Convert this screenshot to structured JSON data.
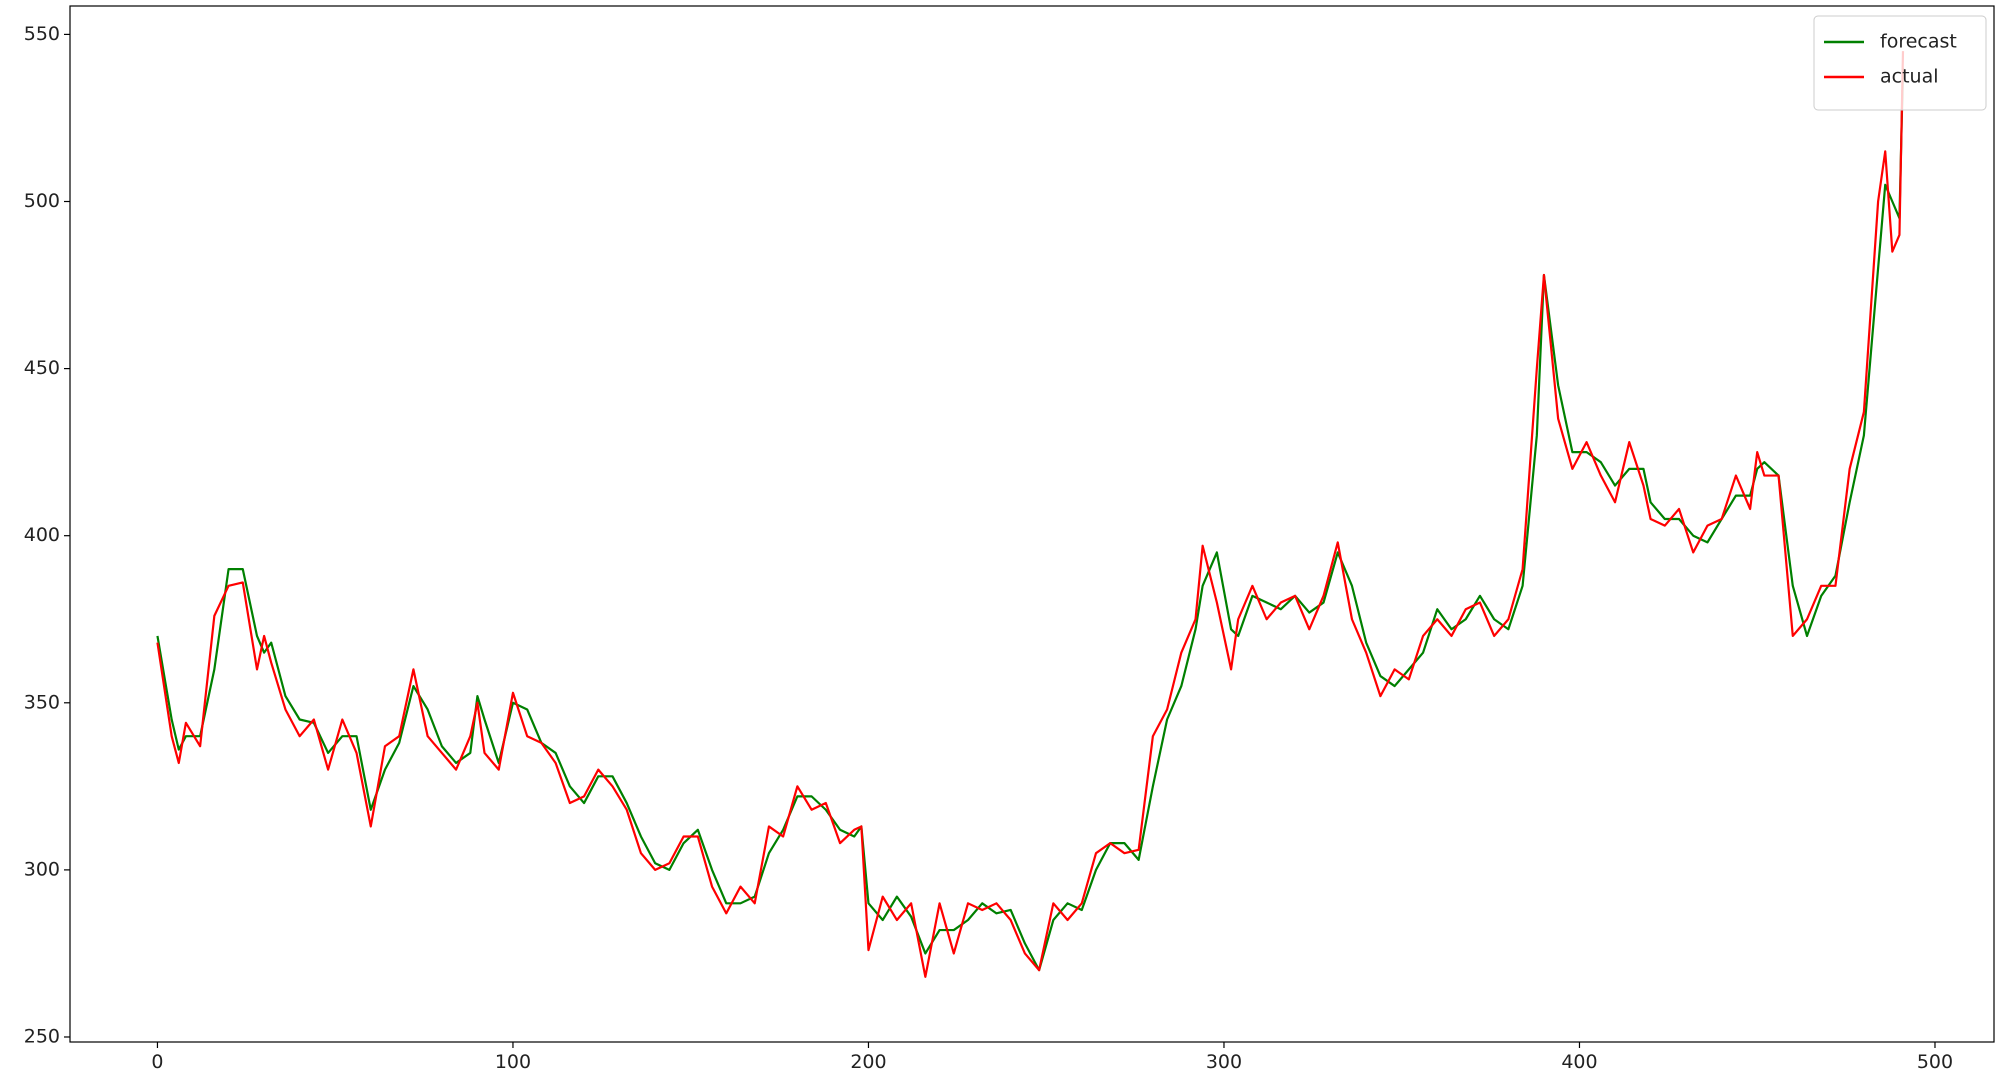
{
  "chart_data": {
    "type": "line",
    "x": [
      0,
      4,
      6,
      8,
      12,
      16,
      20,
      24,
      28,
      30,
      32,
      36,
      40,
      44,
      48,
      52,
      56,
      60,
      64,
      68,
      72,
      76,
      80,
      84,
      88,
      90,
      92,
      96,
      100,
      104,
      108,
      112,
      116,
      120,
      124,
      128,
      132,
      136,
      140,
      144,
      148,
      152,
      156,
      160,
      164,
      168,
      172,
      176,
      180,
      184,
      188,
      192,
      196,
      198,
      200,
      204,
      208,
      212,
      216,
      220,
      224,
      228,
      232,
      236,
      240,
      244,
      248,
      252,
      256,
      260,
      264,
      268,
      272,
      276,
      280,
      284,
      288,
      292,
      294,
      298,
      302,
      304,
      308,
      312,
      316,
      320,
      324,
      328,
      332,
      336,
      340,
      344,
      348,
      352,
      356,
      360,
      364,
      368,
      372,
      376,
      380,
      384,
      388,
      390,
      394,
      398,
      402,
      406,
      410,
      414,
      418,
      420,
      424,
      428,
      432,
      436,
      440,
      444,
      448,
      450,
      452,
      456,
      460,
      464,
      468,
      472,
      476,
      480,
      484,
      486,
      488,
      490,
      491
    ],
    "series": [
      {
        "name": "forecast",
        "color": "#008000",
        "values": [
          370,
          345,
          336,
          340,
          340,
          360,
          390,
          390,
          370,
          365,
          368,
          352,
          345,
          344,
          335,
          340,
          340,
          318,
          330,
          338,
          355,
          348,
          337,
          332,
          335,
          352,
          345,
          332,
          350,
          348,
          338,
          335,
          325,
          320,
          328,
          328,
          320,
          310,
          302,
          300,
          308,
          312,
          300,
          290,
          290,
          292,
          305,
          312,
          322,
          322,
          318,
          312,
          310,
          313,
          290,
          285,
          292,
          286,
          275,
          282,
          282,
          285,
          290,
          287,
          288,
          278,
          270,
          285,
          290,
          288,
          300,
          308,
          308,
          303,
          325,
          345,
          355,
          372,
          385,
          395,
          372,
          370,
          382,
          380,
          378,
          382,
          377,
          380,
          395,
          385,
          368,
          358,
          355,
          360,
          365,
          378,
          372,
          375,
          382,
          375,
          372,
          385,
          430,
          478,
          445,
          425,
          425,
          422,
          415,
          420,
          420,
          410,
          405,
          405,
          400,
          398,
          405,
          412,
          412,
          420,
          422,
          418,
          385,
          370,
          382,
          388,
          410,
          430,
          480,
          505,
          500,
          495,
          540
        ]
      },
      {
        "name": "actual",
        "color": "#ff0000",
        "values": [
          368,
          340,
          332,
          344,
          337,
          376,
          385,
          386,
          360,
          370,
          362,
          348,
          340,
          345,
          330,
          345,
          335,
          313,
          337,
          340,
          360,
          340,
          335,
          330,
          340,
          350,
          335,
          330,
          353,
          340,
          338,
          332,
          320,
          322,
          330,
          325,
          318,
          305,
          300,
          302,
          310,
          310,
          295,
          287,
          295,
          290,
          313,
          310,
          325,
          318,
          320,
          308,
          312,
          313,
          276,
          292,
          285,
          290,
          268,
          290,
          275,
          290,
          288,
          290,
          285,
          275,
          270,
          290,
          285,
          290,
          305,
          308,
          305,
          306,
          340,
          348,
          365,
          375,
          397,
          380,
          360,
          375,
          385,
          375,
          380,
          382,
          372,
          382,
          398,
          375,
          365,
          352,
          360,
          357,
          370,
          375,
          370,
          378,
          380,
          370,
          375,
          390,
          450,
          478,
          435,
          420,
          428,
          418,
          410,
          428,
          415,
          405,
          403,
          408,
          395,
          403,
          405,
          418,
          408,
          425,
          418,
          418,
          370,
          375,
          385,
          385,
          420,
          437,
          500,
          515,
          485,
          490,
          545
        ]
      }
    ],
    "xlim": [
      -24.6,
      516.6
    ],
    "ylim": [
      248.5,
      558.5
    ],
    "xticks": [
      0,
      100,
      200,
      300,
      400,
      500
    ],
    "yticks": [
      250,
      300,
      350,
      400,
      450,
      500,
      550
    ],
    "legend": "upper right"
  }
}
